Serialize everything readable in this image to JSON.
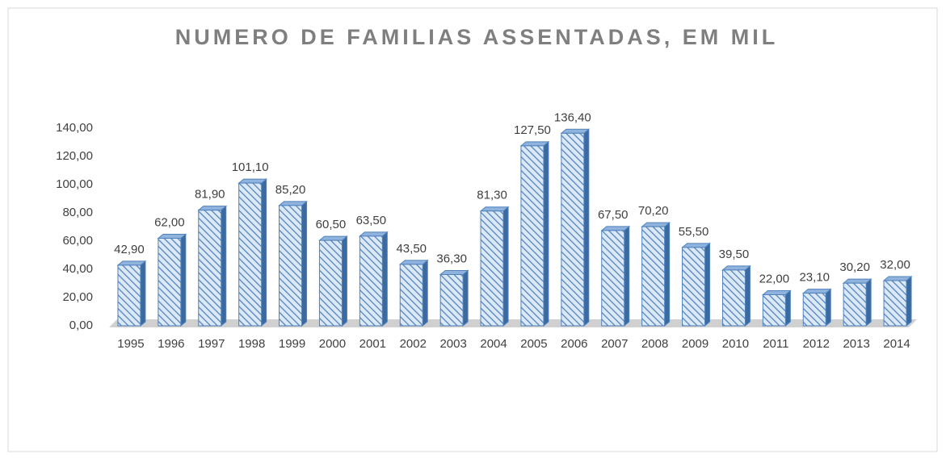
{
  "chart_data": {
    "type": "bar",
    "title": "NUMERO DE FAMILIAS ASSENTADAS, EM MIL",
    "categories": [
      "1995",
      "1996",
      "1997",
      "1998",
      "1999",
      "2000",
      "2001",
      "2002",
      "2003",
      "2004",
      "2005",
      "2006",
      "2007",
      "2008",
      "2009",
      "2010",
      "2011",
      "2012",
      "2013",
      "2014"
    ],
    "values": [
      42.9,
      62,
      81.9,
      101.1,
      85.2,
      60.5,
      63.5,
      43.5,
      36.3,
      81.3,
      127.5,
      136.4,
      67.5,
      70.2,
      55.5,
      39.5,
      22,
      23.1,
      30.2,
      32
    ],
    "value_labels": [
      "42,90",
      "62,00",
      "81,90",
      "101,10",
      "85,20",
      "60,50",
      "63,50",
      "43,50",
      "36,30",
      "81,30",
      "127,50",
      "136,40",
      "67,50",
      "70,20",
      "55,50",
      "39,50",
      "22,00",
      "23,10",
      "30,20",
      "32,00"
    ],
    "color": "#4f81bd",
    "ylim": [
      0,
      140
    ],
    "yticks": [
      {
        "value": 0,
        "label": "0,00"
      },
      {
        "value": 20,
        "label": "20,00"
      },
      {
        "value": 40,
        "label": "40,00"
      },
      {
        "value": 60,
        "label": "60,00"
      },
      {
        "value": 80,
        "label": "80,00"
      },
      {
        "value": 100,
        "label": "100,00"
      },
      {
        "value": 120,
        "label": "120,00"
      },
      {
        "value": 140,
        "label": "140,00"
      }
    ],
    "grid": false
  }
}
